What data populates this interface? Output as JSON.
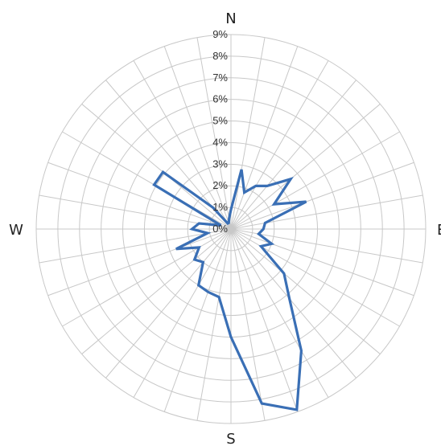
{
  "chart_data": {
    "type": "radar",
    "title": "",
    "radial_ticks": [
      "0%",
      "1%",
      "2%",
      "3%",
      "4%",
      "5%",
      "6%",
      "7%",
      "8%",
      "9%"
    ],
    "rmax": 9,
    "directions": [
      "N",
      "E",
      "S",
      "W"
    ],
    "grid": true,
    "legend": "none",
    "line_color": "#3a6fb5",
    "grid_color": "#c8c8c8",
    "series": [
      {
        "points": [
          [
            0,
            0.9
          ],
          [
            10,
            2.8
          ],
          [
            20,
            1.8
          ],
          [
            30,
            2.3
          ],
          [
            40,
            2.6
          ],
          [
            50,
            3.6
          ],
          [
            60,
            2.3
          ],
          [
            70,
            3.7
          ],
          [
            80,
            1.6
          ],
          [
            90,
            1.5
          ],
          [
            100,
            1.3
          ],
          [
            110,
            2.0
          ],
          [
            120,
            1.6
          ],
          [
            130,
            3.2
          ],
          [
            140,
            4.2
          ],
          [
            150,
            6.5
          ],
          [
            160,
            8.9
          ],
          [
            170,
            8.2
          ],
          [
            180,
            5.0
          ],
          [
            190,
            3.2
          ],
          [
            200,
            3.1
          ],
          [
            210,
            3.0
          ],
          [
            220,
            2.0
          ],
          [
            230,
            2.2
          ],
          [
            240,
            1.7
          ],
          [
            250,
            2.7
          ],
          [
            260,
            1.1
          ],
          [
            270,
            1.8
          ],
          [
            280,
            1.5
          ],
          [
            290,
            0.5
          ],
          [
            300,
            4.1
          ],
          [
            310,
            4.1
          ],
          [
            320,
            1.3
          ],
          [
            330,
            0.3
          ],
          [
            340,
            0.3
          ],
          [
            350,
            0.5
          ]
        ]
      }
    ]
  }
}
